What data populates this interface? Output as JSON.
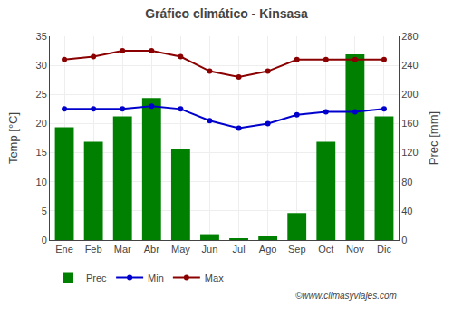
{
  "chart_data": {
    "type": "bar",
    "title": "Gráfico climático - Kinsasa",
    "categories": [
      "Ene",
      "Feb",
      "Mar",
      "Abr",
      "May",
      "Jun",
      "Jul",
      "Ago",
      "Sep",
      "Oct",
      "Nov",
      "Dic"
    ],
    "series": [
      {
        "name": "Prec",
        "type": "bar",
        "axis": "y2",
        "color": "#008000",
        "values": [
          155,
          135,
          170,
          195,
          125,
          8,
          2,
          5,
          37,
          135,
          255,
          170
        ]
      },
      {
        "name": "Min",
        "type": "line",
        "axis": "y",
        "color": "#0000CD",
        "marker": "circle",
        "values": [
          22.5,
          22.5,
          22.5,
          23.0,
          22.5,
          20.5,
          19.2,
          20.0,
          21.5,
          22.0,
          22.0,
          22.5
        ]
      },
      {
        "name": "Max",
        "type": "line",
        "axis": "y",
        "color": "#8B0000",
        "marker": "circle",
        "values": [
          31.0,
          31.5,
          32.5,
          32.5,
          31.5,
          29.0,
          28.0,
          29.0,
          31.0,
          31.0,
          31.0,
          31.0
        ]
      }
    ],
    "ylabel": "Temp [°C]",
    "y2label": "Prec [mm]",
    "ylim": [
      0,
      35
    ],
    "yticks": [
      0,
      5,
      10,
      15,
      20,
      25,
      30,
      35
    ],
    "y2lim": [
      0,
      280
    ],
    "y2ticks": [
      0,
      40,
      80,
      120,
      160,
      200,
      240,
      280
    ],
    "grid": true,
    "legend": "bottom",
    "annotations": [
      "©www.climasyviajes.com"
    ]
  }
}
